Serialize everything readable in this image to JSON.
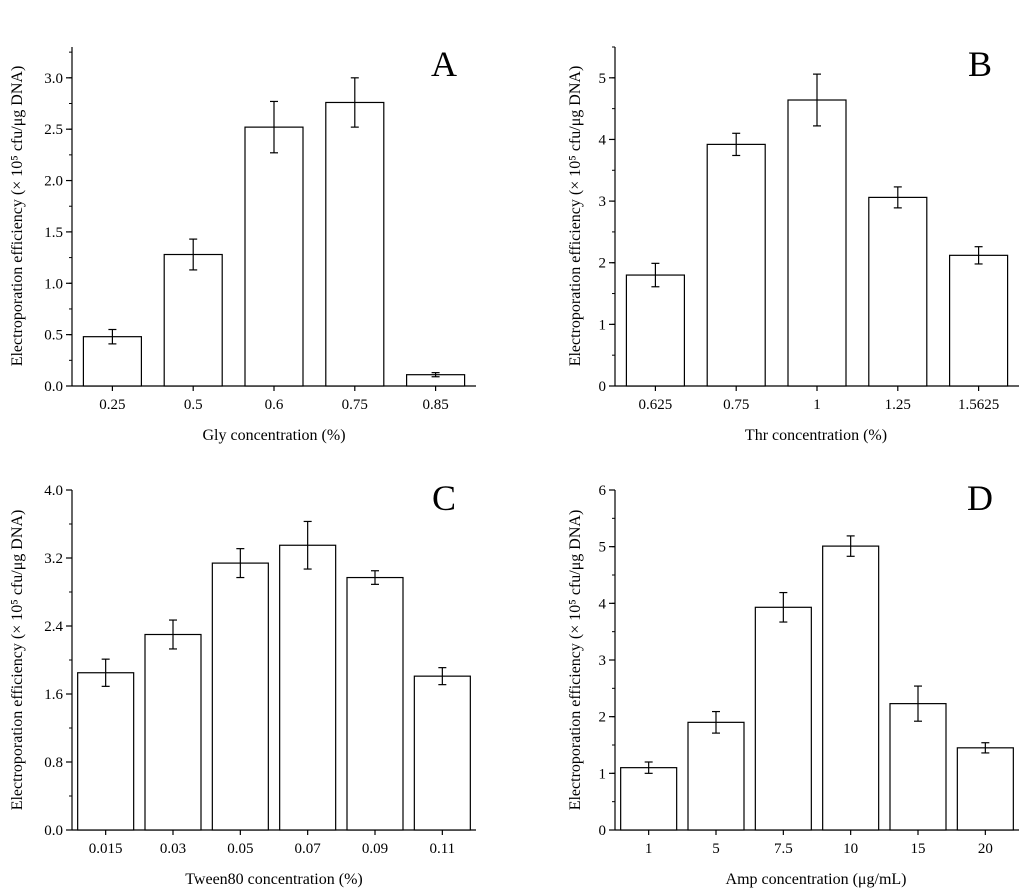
{
  "chart_data": [
    {
      "type": "bar",
      "panel_label": "A",
      "categories": [
        "0.25",
        "0.5",
        "0.6",
        "0.75",
        "0.85"
      ],
      "values": [
        0.48,
        1.28,
        2.52,
        2.76,
        0.11
      ],
      "errors": [
        0.07,
        0.15,
        0.25,
        0.24,
        0.02
      ],
      "xlabel": "Gly concentration (%)",
      "ylabel": "Electroporation efficiency (× 10⁵ cfu/μg DNA)",
      "ylim": [
        0,
        3.3
      ],
      "yticks": [
        "0.0",
        "0.5",
        "1.0",
        "1.5",
        "2.0",
        "2.5",
        "3.0"
      ],
      "ytick_values": [
        0,
        0.5,
        1.0,
        1.5,
        2.0,
        2.5,
        3.0
      ],
      "minor_step": 0.25,
      "grid": false
    },
    {
      "type": "bar",
      "panel_label": "B",
      "categories": [
        "0.625",
        "0.75",
        "1",
        "1.25",
        "1.5625"
      ],
      "values": [
        1.8,
        3.92,
        4.64,
        3.06,
        2.12
      ],
      "errors": [
        0.19,
        0.18,
        0.42,
        0.17,
        0.14
      ],
      "xlabel": "Thr concentration (%)",
      "ylabel": "Electroporation efficiency (× 10⁵ cfu/μg DNA)",
      "ylim": [
        0,
        5.5
      ],
      "yticks": [
        "0",
        "1",
        "2",
        "3",
        "4",
        "5"
      ],
      "ytick_values": [
        0,
        1,
        2,
        3,
        4,
        5
      ],
      "minor_step": 0.5,
      "grid": false
    },
    {
      "type": "bar",
      "panel_label": "C",
      "categories": [
        "0.015",
        "0.03",
        "0.05",
        "0.07",
        "0.09",
        "0.11"
      ],
      "values": [
        1.85,
        2.3,
        3.14,
        3.35,
        2.97,
        1.81
      ],
      "errors": [
        0.16,
        0.17,
        0.17,
        0.28,
        0.08,
        0.1
      ],
      "xlabel": "Tween80 concentration (%)",
      "ylabel": "Electroporation efficiency (× 10⁵ cfu/μg DNA)",
      "ylim": [
        0,
        4.0
      ],
      "yticks": [
        "0.0",
        "0.8",
        "1.6",
        "2.4",
        "3.2",
        "4.0"
      ],
      "ytick_values": [
        0,
        0.8,
        1.6,
        2.4,
        3.2,
        4.0
      ],
      "minor_step": 0.4,
      "grid": false
    },
    {
      "type": "bar",
      "panel_label": "D",
      "categories": [
        "1",
        "5",
        "7.5",
        "10",
        "15",
        "20"
      ],
      "values": [
        1.1,
        1.9,
        3.93,
        5.01,
        2.23,
        1.45
      ],
      "errors": [
        0.1,
        0.19,
        0.26,
        0.18,
        0.31,
        0.09
      ],
      "xlabel": "Amp concentration (μg/mL)",
      "ylabel": "Electroporation efficiency (× 10⁵ cfu/μg DNA)",
      "ylim": [
        0,
        6
      ],
      "yticks": [
        "0",
        "1",
        "2",
        "3",
        "4",
        "5",
        "6"
      ],
      "ytick_values": [
        0,
        1,
        2,
        3,
        4,
        5,
        6
      ],
      "minor_step": 0.5,
      "grid": false
    }
  ],
  "colors": {
    "bar_fill": "#ffffff",
    "stroke": "#000000",
    "text": "#000000"
  }
}
